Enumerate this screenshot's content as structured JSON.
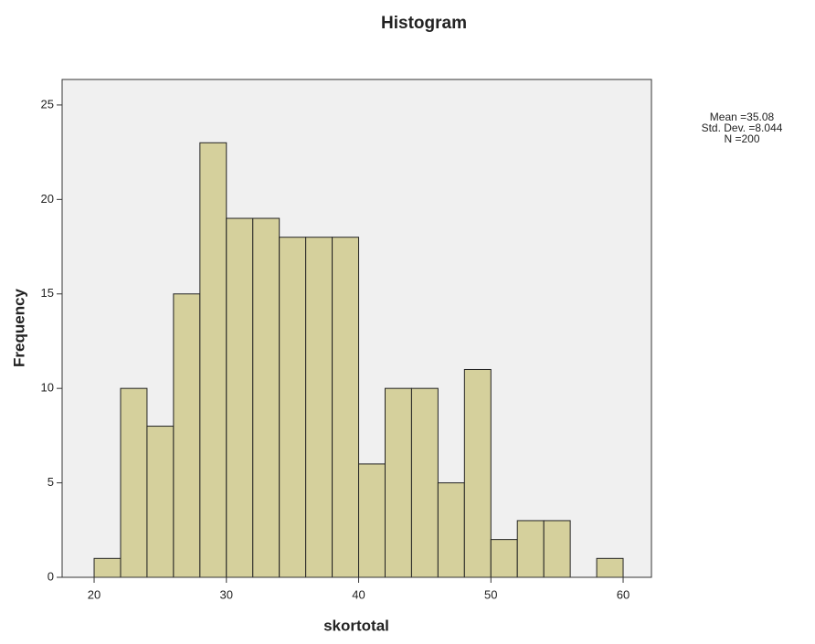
{
  "chart_data": {
    "type": "histogram",
    "title": "Histogram",
    "x_label": "skortotal",
    "y_label": "Frequency",
    "bins": [
      20,
      22,
      24,
      26,
      28,
      30,
      32,
      34,
      36,
      38,
      40,
      42,
      44,
      46,
      48,
      50,
      52,
      54,
      56,
      58,
      60
    ],
    "counts": [
      1,
      10,
      8,
      15,
      23,
      19,
      19,
      18,
      18,
      18,
      6,
      10,
      10,
      5,
      11,
      2,
      3,
      3,
      0,
      1
    ],
    "color": "#d5d09c",
    "xlim": [
      17.58,
      62.14
    ],
    "xticks": [
      20,
      30,
      40,
      50,
      60
    ],
    "ylim": [
      0,
      26.35
    ],
    "yticks": [
      0,
      5,
      10,
      15,
      20,
      25
    ],
    "annotations": [
      "Mean =35.08",
      "Std. Dev. =8.044",
      "N =200"
    ]
  }
}
